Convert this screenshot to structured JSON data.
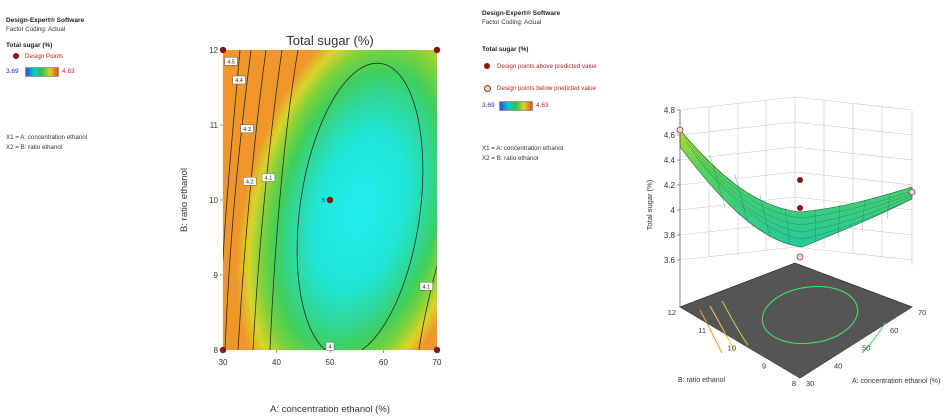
{
  "left_info": {
    "software": "Design-Expert® Software",
    "coding": "Factor Coding: Actual",
    "response": "Total sugar (%)",
    "points_label": "Design Points",
    "range_low": "3.69",
    "range_high": "4.63",
    "x1": "X1 = A: concentration ethanol",
    "x2": "X2 = B: ratio ethanol"
  },
  "right_info": {
    "software": "Design-Expert® Software",
    "coding": "Factor Coding: Actual",
    "response": "Total sugar (%)",
    "above_label": "Design points above predicted value",
    "below_label": "Design points below predicted value",
    "range_low": "3.69",
    "range_high": "4.63",
    "x1": "X1 = A: concentration ethanol",
    "x2": "X2 = B: ratio ethanol"
  },
  "colors": {
    "high": "#f39a1e",
    "mid": "#3fd05a",
    "low": "#1ee8ee",
    "point": "#8b1010",
    "contour": "#2b2b2b"
  },
  "chart_data": [
    {
      "type": "contour",
      "title": "Total sugar (%)",
      "xlabel": "A: concentration ethanol (%)",
      "ylabel": "B: ratio ethanol",
      "xlim": [
        30,
        70
      ],
      "ylim": [
        8,
        12
      ],
      "xticks": [
        "30",
        "40",
        "50",
        "60",
        "70"
      ],
      "yticks": [
        "8",
        "9",
        "10",
        "11",
        "12"
      ],
      "contour_labels": [
        {
          "text": "4.5",
          "x": 31.5,
          "y": 11.85
        },
        {
          "text": "4.4",
          "x": 33.0,
          "y": 11.6
        },
        {
          "text": "4.3",
          "x": 34.5,
          "y": 10.95
        },
        {
          "text": "4.2",
          "x": 35.0,
          "y": 10.25
        },
        {
          "text": "4.1",
          "x": 38.5,
          "y": 10.3
        },
        {
          "text": "4",
          "x": 50.0,
          "y": 8.05
        },
        {
          "text": "4.1",
          "x": 68.0,
          "y": 8.85
        }
      ],
      "design_points": [
        {
          "x": 30,
          "y": 12
        },
        {
          "x": 70,
          "y": 12
        },
        {
          "x": 30,
          "y": 8
        },
        {
          "x": 70,
          "y": 8
        },
        {
          "x": 50,
          "y": 10,
          "label": "5"
        }
      ]
    },
    {
      "type": "surface3d",
      "zlabel": "Total sugar (%)",
      "xlabel": "A: concentration ethanol (%)",
      "ylabel": "B: ratio ethanol",
      "zlim": [
        3.6,
        4.8
      ],
      "zticks": [
        "3.6",
        "3.8",
        "4",
        "4.2",
        "4.4",
        "4.6",
        "4.8"
      ],
      "xticks": [
        "30",
        "40",
        "50",
        "60",
        "70"
      ],
      "yticks": [
        "8",
        "9",
        "10",
        "11",
        "12"
      ]
    }
  ]
}
